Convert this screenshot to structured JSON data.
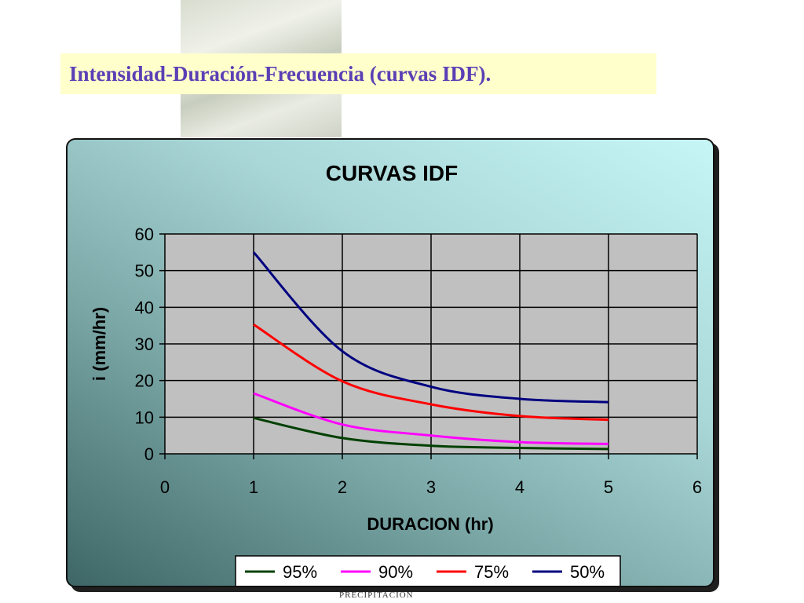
{
  "slide": {
    "title": "Intensidad-Duración-Frecuencia (curvas IDF).",
    "footer": "PRECIPITACION"
  },
  "chart_data": {
    "type": "line",
    "title": "CURVAS IDF",
    "xlabel": "DURACION (hr)",
    "ylabel": "i (mm/hr)",
    "xlim": [
      0,
      6
    ],
    "ylim": [
      0,
      60
    ],
    "xticks": [
      0,
      1,
      2,
      3,
      4,
      5,
      6
    ],
    "yticks": [
      0,
      10,
      20,
      30,
      40,
      50,
      60
    ],
    "grid": true,
    "legend_position": "bottom",
    "x": [
      1,
      2,
      3,
      4,
      5
    ],
    "series": [
      {
        "name": "95%",
        "color": "#004000",
        "values": [
          9.8,
          4.3,
          2.2,
          1.6,
          1.3
        ]
      },
      {
        "name": "90%",
        "color": "#ff00ff",
        "values": [
          16.5,
          8.0,
          5.0,
          3.2,
          2.7
        ]
      },
      {
        "name": "75%",
        "color": "#ff0000",
        "values": [
          35.3,
          19.8,
          13.5,
          10.3,
          9.3
        ]
      },
      {
        "name": "50%",
        "color": "#000080",
        "values": [
          55.0,
          28.0,
          18.3,
          15.0,
          14.1
        ]
      }
    ]
  }
}
